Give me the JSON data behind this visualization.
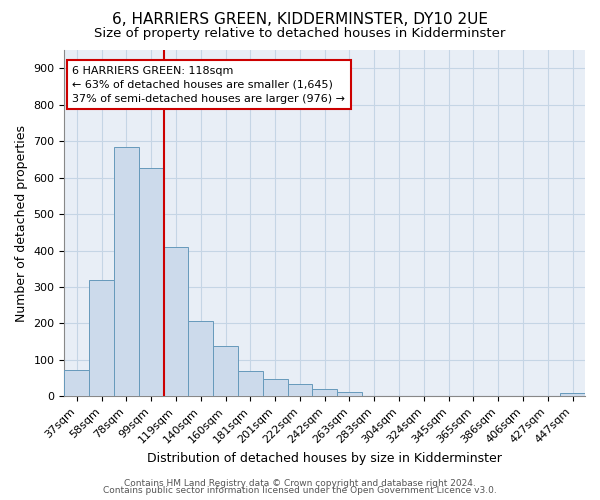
{
  "title1": "6, HARRIERS GREEN, KIDDERMINSTER, DY10 2UE",
  "title2": "Size of property relative to detached houses in Kidderminster",
  "xlabel": "Distribution of detached houses by size in Kidderminster",
  "ylabel": "Number of detached properties",
  "categories": [
    "37sqm",
    "58sqm",
    "78sqm",
    "99sqm",
    "119sqm",
    "140sqm",
    "160sqm",
    "181sqm",
    "201sqm",
    "222sqm",
    "242sqm",
    "263sqm",
    "283sqm",
    "304sqm",
    "324sqm",
    "345sqm",
    "365sqm",
    "386sqm",
    "406sqm",
    "427sqm",
    "447sqm"
  ],
  "values": [
    72,
    320,
    685,
    625,
    410,
    208,
    138,
    70,
    48,
    35,
    20,
    12,
    0,
    0,
    0,
    0,
    0,
    0,
    0,
    0,
    8
  ],
  "bar_color": "#ccdaeb",
  "bar_edge_color": "#6699bb",
  "vline_x_pos": 3.5,
  "vline_color": "#cc0000",
  "annotation_line1": "6 HARRIERS GREEN: 118sqm",
  "annotation_line2": "← 63% of detached houses are smaller (1,645)",
  "annotation_line3": "37% of semi-detached houses are larger (976) →",
  "annotation_box_color": "#cc0000",
  "ylim": [
    0,
    950
  ],
  "yticks": [
    0,
    100,
    200,
    300,
    400,
    500,
    600,
    700,
    800,
    900
  ],
  "grid_color": "#c5d5e5",
  "bg_color": "#e8eef6",
  "footnote1": "Contains HM Land Registry data © Crown copyright and database right 2024.",
  "footnote2": "Contains public sector information licensed under the Open Government Licence v3.0.",
  "title1_fontsize": 11,
  "title2_fontsize": 9.5,
  "xlabel_fontsize": 9,
  "ylabel_fontsize": 9,
  "tick_fontsize": 8,
  "footnote_fontsize": 6.5
}
